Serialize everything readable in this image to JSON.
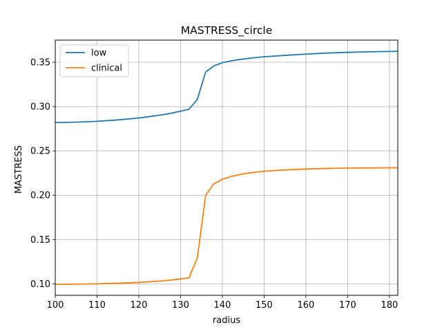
{
  "chart_data": {
    "type": "line",
    "title": "MASTRESS_circle",
    "xlabel": "radius",
    "ylabel": "MASTRESS",
    "xlim": [
      100,
      182
    ],
    "ylim": [
      0.087,
      0.375
    ],
    "xticks": [
      "100",
      "110",
      "120",
      "130",
      "140",
      "150",
      "160",
      "170",
      "180"
    ],
    "yticks": [
      "0.10",
      "0.15",
      "0.20",
      "0.25",
      "0.30",
      "0.35"
    ],
    "grid": true,
    "legend_position": "top-left",
    "x": [
      100,
      102,
      104,
      106,
      108,
      110,
      112,
      114,
      116,
      118,
      120,
      122,
      124,
      126,
      128,
      130,
      132,
      134,
      136,
      138,
      140,
      142,
      144,
      146,
      148,
      150,
      155,
      160,
      165,
      170,
      175,
      180,
      182
    ],
    "series": [
      {
        "name": "low",
        "color": "#1f77b4",
        "values": [
          0.282,
          0.2821,
          0.2823,
          0.2826,
          0.283,
          0.2834,
          0.284,
          0.2846,
          0.2854,
          0.2862,
          0.2872,
          0.2883,
          0.2896,
          0.291,
          0.2928,
          0.2948,
          0.297,
          0.308,
          0.339,
          0.346,
          0.3495,
          0.3515,
          0.353,
          0.3543,
          0.3553,
          0.3562,
          0.3578,
          0.3592,
          0.3604,
          0.3612,
          0.3618,
          0.3622,
          0.3623
        ]
      },
      {
        "name": "clinical",
        "color": "#ff7f0e",
        "values": [
          0.0995,
          0.0995,
          0.0996,
          0.0997,
          0.0999,
          0.1,
          0.1003,
          0.1005,
          0.1008,
          0.1012,
          0.1016,
          0.1021,
          0.1027,
          0.1035,
          0.1044,
          0.1055,
          0.1068,
          0.129,
          0.2,
          0.213,
          0.218,
          0.221,
          0.2232,
          0.2248,
          0.226,
          0.227,
          0.2285,
          0.2295,
          0.2302,
          0.2306,
          0.2308,
          0.2309,
          0.2309
        ]
      }
    ]
  }
}
